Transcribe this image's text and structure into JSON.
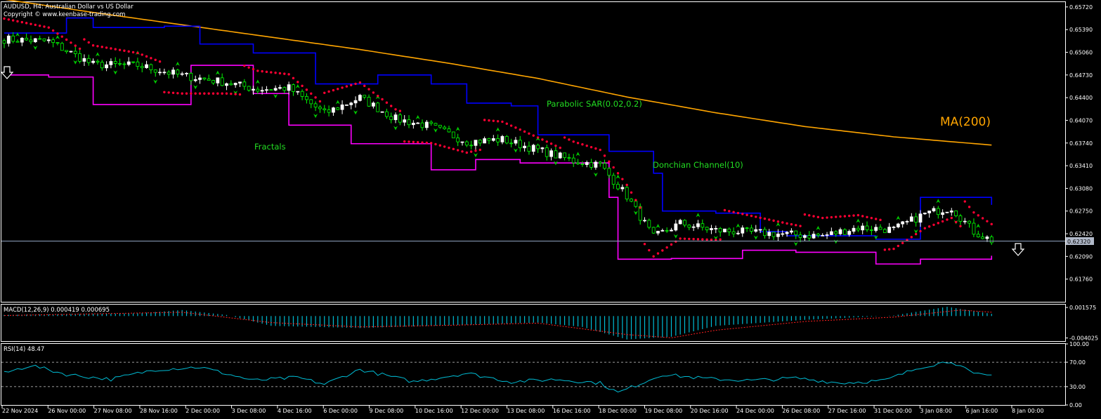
{
  "header": {
    "title": "AUDUSD, H4:  Australian Dollar vs US Dollar",
    "copyright": "Copyright © www.keenbase-trading.com"
  },
  "colors": {
    "background": "#000000",
    "bull_candle": "#ffffff",
    "bear_candle": "#00ff00",
    "donchian_upper": "#0000ff",
    "donchian_lower": "#ff00ff",
    "parabolic_sar": "#ff0033",
    "ma200": "#ffa500",
    "fractal": "#00cc00",
    "macd_hist": "#00bcd4",
    "macd_signal": "#ff2020",
    "rsi": "#00bcd4",
    "price_line": "#b0c4de"
  },
  "annotations": {
    "fractals": "Fractals",
    "parabolic_sar": "Parabolic SAR(0.02,0.2)",
    "donchian": "Donchian Channel(10)",
    "ma": "MA(200)"
  },
  "indicators": {
    "macd_label": "MACD(12,26,9) 0.000419 0.000695",
    "rsi_label": "RSI(14) 48.47"
  },
  "chart_data": [
    {
      "type": "candlestick",
      "title": "AUDUSD, H4:  Australian Dollar vs US Dollar",
      "price_axis_ticks": [
        "0.65720",
        "0.65390",
        "0.65060",
        "0.64730",
        "0.64400",
        "0.64070",
        "0.63740",
        "0.63410",
        "0.63080",
        "0.62750",
        "0.62420",
        "0.62090",
        "0.61760"
      ],
      "ylim": [
        0.6143,
        0.6579
      ],
      "current_price": "0.62320",
      "time_axis_ticks": [
        "22 Nov 2024",
        "26 Nov 00:00",
        "27 Nov 08:00",
        "28 Nov 16:00",
        "2 Dec 00:00",
        "3 Dec 08:00",
        "4 Dec 16:00",
        "6 Dec 00:00",
        "9 Dec 08:00",
        "10 Dec 16:00",
        "12 Dec 00:00",
        "13 Dec 08:00",
        "16 Dec 16:00",
        "18 Dec 00:00",
        "19 Dec 08:00",
        "20 Dec 16:00",
        "24 Dec 00:00",
        "26 Dec 08:00",
        "27 Dec 16:00",
        "31 Dec 00:00",
        "3 Jan 08:00",
        "6 Jan 16:00",
        "8 Jan 00:00"
      ],
      "close_path": [
        [
          0,
          0.6525
        ],
        [
          10,
          0.6522
        ],
        [
          20,
          0.6488
        ],
        [
          30,
          0.6487
        ],
        [
          40,
          0.6472
        ],
        [
          50,
          0.6462
        ],
        [
          57,
          0.6452
        ],
        [
          64,
          0.6454
        ],
        [
          72,
          0.6417
        ],
        [
          80,
          0.644
        ],
        [
          88,
          0.6409
        ],
        [
          96,
          0.6398
        ],
        [
          104,
          0.6376
        ],
        [
          112,
          0.6379
        ],
        [
          120,
          0.6364
        ],
        [
          128,
          0.6348
        ],
        [
          134,
          0.6342
        ],
        [
          140,
          0.6297
        ],
        [
          146,
          0.6237
        ],
        [
          152,
          0.6257
        ],
        [
          160,
          0.6247
        ],
        [
          168,
          0.6244
        ],
        [
          176,
          0.6241
        ],
        [
          184,
          0.6239
        ],
        [
          192,
          0.6251
        ],
        [
          200,
          0.6248
        ],
        [
          207,
          0.6271
        ],
        [
          213,
          0.628
        ],
        [
          218,
          0.6245
        ],
        [
          222,
          0.6232
        ]
      ],
      "ma200": [
        [
          0,
          0.6583
        ],
        [
          20,
          0.6564
        ],
        [
          40,
          0.6546
        ],
        [
          60,
          0.6528
        ],
        [
          80,
          0.651
        ],
        [
          100,
          0.649
        ],
        [
          120,
          0.6468
        ],
        [
          140,
          0.6441
        ],
        [
          160,
          0.6418
        ],
        [
          180,
          0.6398
        ],
        [
          200,
          0.6383
        ],
        [
          222,
          0.6371
        ]
      ],
      "donchian_upper": [
        [
          0,
          0.6534
        ],
        [
          14,
          0.6556
        ],
        [
          20,
          0.6542
        ],
        [
          30,
          0.6542
        ],
        [
          36,
          0.6544
        ],
        [
          44,
          0.6518
        ],
        [
          56,
          0.6505
        ],
        [
          70,
          0.646
        ],
        [
          84,
          0.6473
        ],
        [
          96,
          0.646
        ],
        [
          104,
          0.6432
        ],
        [
          114,
          0.6428
        ],
        [
          120,
          0.6386
        ],
        [
          136,
          0.6362
        ],
        [
          146,
          0.633
        ],
        [
          148,
          0.6275
        ],
        [
          160,
          0.6272
        ],
        [
          170,
          0.6245
        ],
        [
          176,
          0.6239
        ],
        [
          196,
          0.6234
        ],
        [
          206,
          0.6295
        ],
        [
          222,
          0.6284
        ]
      ],
      "donchian_lower": [
        [
          0,
          0.6473
        ],
        [
          10,
          0.647
        ],
        [
          20,
          0.643
        ],
        [
          30,
          0.643
        ],
        [
          42,
          0.6487
        ],
        [
          56,
          0.6446
        ],
        [
          64,
          0.64
        ],
        [
          76,
          0.64
        ],
        [
          78,
          0.6373
        ],
        [
          90,
          0.6373
        ],
        [
          96,
          0.6335
        ],
        [
          106,
          0.635
        ],
        [
          116,
          0.6345
        ],
        [
          136,
          0.6295
        ],
        [
          138,
          0.6205
        ],
        [
          150,
          0.6206
        ],
        [
          166,
          0.6218
        ],
        [
          178,
          0.6215
        ],
        [
          196,
          0.6198
        ],
        [
          206,
          0.6205
        ],
        [
          222,
          0.621
        ]
      ]
    },
    {
      "type": "bar",
      "title": "MACD(12,26,9) 0.000419 0.000695",
      "axis_ticks": [
        "0.001575",
        "-0.004025"
      ],
      "ylim": [
        -0.0046,
        0.0021
      ],
      "histogram_path": [
        [
          0,
          0.0002
        ],
        [
          30,
          0.0005
        ],
        [
          40,
          0.0011
        ],
        [
          50,
          0.0002
        ],
        [
          60,
          -0.0018
        ],
        [
          80,
          -0.0022
        ],
        [
          100,
          -0.0017
        ],
        [
          120,
          -0.0012
        ],
        [
          130,
          -0.002
        ],
        [
          140,
          -0.0043
        ],
        [
          150,
          -0.0038
        ],
        [
          160,
          -0.0018
        ],
        [
          180,
          -0.0007
        ],
        [
          200,
          0.0001
        ],
        [
          212,
          0.0017
        ],
        [
          222,
          0.0004
        ]
      ],
      "signal_path": [
        [
          0,
          0.0001
        ],
        [
          40,
          0.0007
        ],
        [
          60,
          -0.0012
        ],
        [
          80,
          -0.002
        ],
        [
          100,
          -0.0017
        ],
        [
          120,
          -0.0013
        ],
        [
          140,
          -0.0034
        ],
        [
          150,
          -0.004
        ],
        [
          160,
          -0.0026
        ],
        [
          180,
          -0.001
        ],
        [
          200,
          -0.0002
        ],
        [
          215,
          0.0011
        ],
        [
          222,
          0.0007
        ]
      ]
    },
    {
      "type": "line",
      "title": "RSI(14) 48.47",
      "axis_ticks": [
        "100.00",
        "70.00",
        "30.00",
        "0.00"
      ],
      "levels": [
        70,
        30
      ],
      "ylim": [
        0,
        100
      ],
      "rsi_path": [
        [
          0,
          52
        ],
        [
          6,
          65
        ],
        [
          14,
          50
        ],
        [
          24,
          42
        ],
        [
          34,
          58
        ],
        [
          44,
          62
        ],
        [
          56,
          40
        ],
        [
          66,
          45
        ],
        [
          72,
          34
        ],
        [
          80,
          58
        ],
        [
          92,
          38
        ],
        [
          104,
          52
        ],
        [
          114,
          38
        ],
        [
          124,
          42
        ],
        [
          134,
          36
        ],
        [
          138,
          20
        ],
        [
          148,
          50
        ],
        [
          158,
          43
        ],
        [
          168,
          40
        ],
        [
          178,
          44
        ],
        [
          188,
          36
        ],
        [
          198,
          40
        ],
        [
          206,
          62
        ],
        [
          213,
          72
        ],
        [
          218,
          50
        ],
        [
          222,
          48.47
        ]
      ]
    }
  ]
}
